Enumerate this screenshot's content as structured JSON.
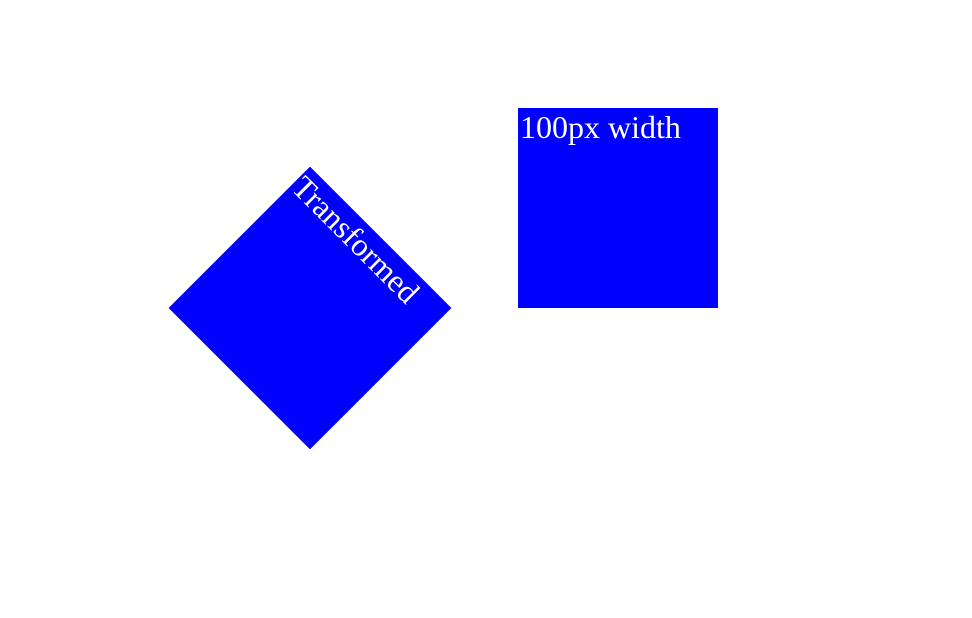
{
  "boxes": {
    "transformed": {
      "label": "Transformed",
      "color": "#0000ff",
      "text_color": "#ffffff",
      "rotation_deg": 45
    },
    "plain": {
      "label": "100px width",
      "color": "#0000ff",
      "text_color": "#ffffff"
    }
  }
}
